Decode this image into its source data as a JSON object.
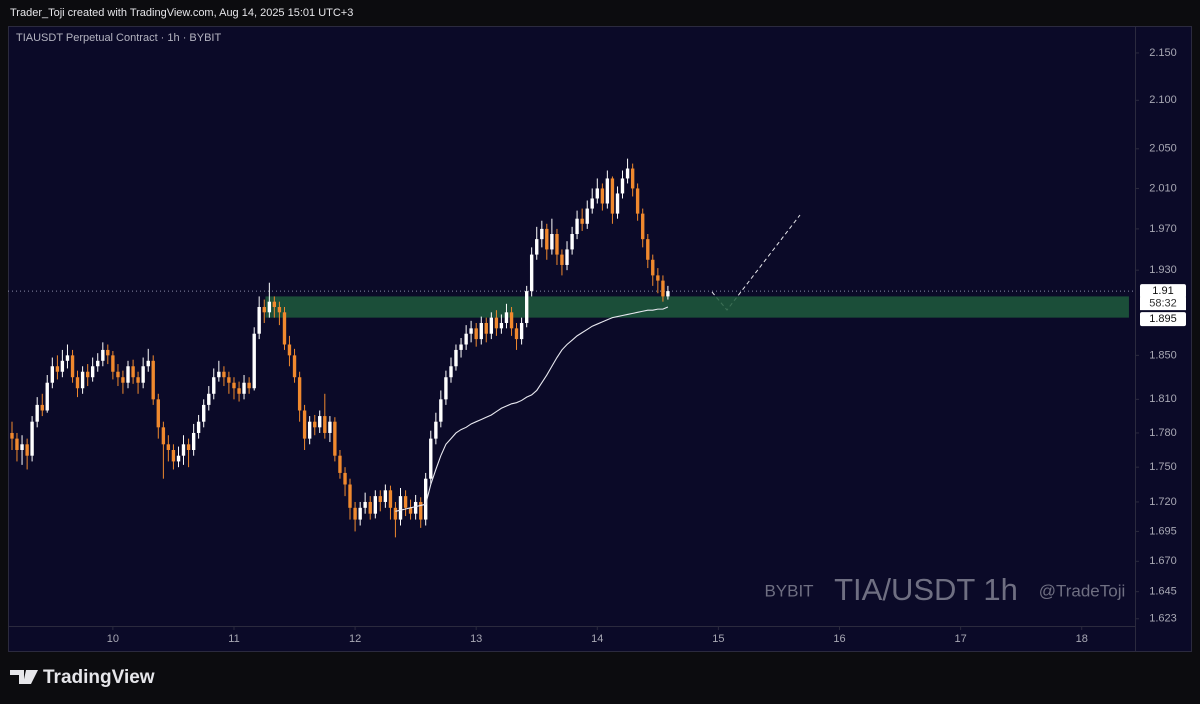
{
  "header": {
    "credit": "Trader_Toji created with TradingView.com, Aug 14, 2025 15:01 UTC+3"
  },
  "footer": {
    "brand": "TradingView"
  },
  "chart_data": {
    "type": "candlestick",
    "title": "TIAUSDT Perpetual Contract · 1h · BYBIT",
    "watermark": {
      "exchange": "BYBIT",
      "symbol": "TIA/USDT 1h",
      "author": "@TradeToji"
    },
    "log_scale": true,
    "up_color": "#ffffff",
    "down_color": "#f0892e",
    "x": [
      9.167,
      9.208,
      9.25,
      9.292,
      9.333,
      9.375,
      9.417,
      9.458,
      9.5,
      9.542,
      9.583,
      9.625,
      9.667,
      9.708,
      9.75,
      9.792,
      9.833,
      9.875,
      9.917,
      9.958,
      10.0,
      10.042,
      10.083,
      10.125,
      10.167,
      10.208,
      10.25,
      10.292,
      10.333,
      10.375,
      10.417,
      10.458,
      10.5,
      10.542,
      10.583,
      10.625,
      10.667,
      10.708,
      10.75,
      10.792,
      10.833,
      10.875,
      10.917,
      10.958,
      11.0,
      11.042,
      11.083,
      11.125,
      11.167,
      11.208,
      11.25,
      11.292,
      11.333,
      11.375,
      11.417,
      11.458,
      11.5,
      11.542,
      11.583,
      11.625,
      11.667,
      11.708,
      11.75,
      11.792,
      11.833,
      11.875,
      11.917,
      11.958,
      12.0,
      12.042,
      12.083,
      12.125,
      12.167,
      12.208,
      12.25,
      12.292,
      12.333,
      12.375,
      12.417,
      12.458,
      12.5,
      12.542,
      12.583,
      12.625,
      12.667,
      12.708,
      12.75,
      12.792,
      12.833,
      12.875,
      12.917,
      12.958,
      13.0,
      13.042,
      13.083,
      13.125,
      13.167,
      13.208,
      13.25,
      13.292,
      13.333,
      13.375,
      13.417,
      13.458,
      13.5,
      13.542,
      13.583,
      13.625,
      13.667,
      13.708,
      13.75,
      13.792,
      13.833,
      13.875,
      13.917,
      13.958,
      14.0,
      14.042,
      14.083,
      14.125,
      14.167,
      14.208,
      14.25,
      14.292,
      14.333,
      14.375,
      14.417,
      14.458,
      14.5,
      14.542,
      14.583
    ],
    "open": [
      1.78,
      1.775,
      1.765,
      1.77,
      1.76,
      1.79,
      1.805,
      1.8,
      1.825,
      1.84,
      1.835,
      1.845,
      1.85,
      1.83,
      1.82,
      1.835,
      1.83,
      1.84,
      1.845,
      1.855,
      1.85,
      1.835,
      1.83,
      1.825,
      1.84,
      1.83,
      1.825,
      1.84,
      1.845,
      1.81,
      1.785,
      1.77,
      1.765,
      1.755,
      1.76,
      1.77,
      1.765,
      1.78,
      1.79,
      1.805,
      1.815,
      1.83,
      1.835,
      1.83,
      1.825,
      1.82,
      1.815,
      1.825,
      1.82,
      1.87,
      1.895,
      1.89,
      1.9,
      1.895,
      1.89,
      1.86,
      1.85,
      1.83,
      1.8,
      1.775,
      1.79,
      1.785,
      1.795,
      1.78,
      1.79,
      1.76,
      1.745,
      1.735,
      1.715,
      1.705,
      1.715,
      1.72,
      1.71,
      1.725,
      1.72,
      1.73,
      1.715,
      1.705,
      1.725,
      1.715,
      1.71,
      1.72,
      1.705,
      1.74,
      1.775,
      1.79,
      1.81,
      1.83,
      1.84,
      1.855,
      1.86,
      1.87,
      1.875,
      1.865,
      1.88,
      1.87,
      1.885,
      1.875,
      1.88,
      1.89,
      1.875,
      1.865,
      1.88,
      1.91,
      1.945,
      1.96,
      1.97,
      1.95,
      1.965,
      1.945,
      1.935,
      1.95,
      1.965,
      1.98,
      1.975,
      1.99,
      2.0,
      2.01,
      1.995,
      2.02,
      1.985,
      2.005,
      2.02,
      2.03,
      2.01,
      1.985,
      1.96,
      1.94,
      1.925,
      1.92,
      1.905
    ],
    "high": [
      1.79,
      1.78,
      1.778,
      1.775,
      1.795,
      1.812,
      1.815,
      1.832,
      1.848,
      1.85,
      1.855,
      1.86,
      1.855,
      1.836,
      1.84,
      1.842,
      1.848,
      1.852,
      1.862,
      1.86,
      1.854,
      1.842,
      1.836,
      1.845,
      1.846,
      1.835,
      1.848,
      1.856,
      1.85,
      1.815,
      1.79,
      1.778,
      1.77,
      1.768,
      1.778,
      1.775,
      1.788,
      1.796,
      1.81,
      1.822,
      1.838,
      1.845,
      1.84,
      1.835,
      1.83,
      1.826,
      1.832,
      1.83,
      1.876,
      1.905,
      1.902,
      1.918,
      1.905,
      1.9,
      1.895,
      1.868,
      1.856,
      1.835,
      1.805,
      1.795,
      1.796,
      1.8,
      1.815,
      1.795,
      1.794,
      1.765,
      1.75,
      1.74,
      1.72,
      1.72,
      1.728,
      1.725,
      1.73,
      1.73,
      1.735,
      1.734,
      1.72,
      1.732,
      1.73,
      1.722,
      1.726,
      1.724,
      1.745,
      1.782,
      1.798,
      1.818,
      1.836,
      1.848,
      1.86,
      1.866,
      1.878,
      1.882,
      1.88,
      1.886,
      1.885,
      1.89,
      1.892,
      1.888,
      1.898,
      1.895,
      1.88,
      1.885,
      1.915,
      1.952,
      1.972,
      1.978,
      1.975,
      1.98,
      1.97,
      1.95,
      1.958,
      1.972,
      1.988,
      1.99,
      1.998,
      2.01,
      2.02,
      2.015,
      2.028,
      2.022,
      2.012,
      2.028,
      2.04,
      2.035,
      2.015,
      1.99,
      1.965,
      1.945,
      1.932,
      1.925,
      1.915
    ],
    "low": [
      1.765,
      1.755,
      1.752,
      1.748,
      1.755,
      1.785,
      1.795,
      1.798,
      1.82,
      1.828,
      1.83,
      1.838,
      1.825,
      1.812,
      1.815,
      1.822,
      1.826,
      1.835,
      1.84,
      1.842,
      1.828,
      1.822,
      1.815,
      1.82,
      1.824,
      1.815,
      1.82,
      1.835,
      1.805,
      1.775,
      1.74,
      1.755,
      1.748,
      1.75,
      1.752,
      1.75,
      1.76,
      1.775,
      1.785,
      1.8,
      1.81,
      1.826,
      1.822,
      1.815,
      1.81,
      1.808,
      1.81,
      1.815,
      1.818,
      1.865,
      1.88,
      1.885,
      1.885,
      1.878,
      1.855,
      1.84,
      1.825,
      1.79,
      1.765,
      1.77,
      1.778,
      1.78,
      1.775,
      1.772,
      1.755,
      1.74,
      1.725,
      1.705,
      1.695,
      1.7,
      1.71,
      1.705,
      1.706,
      1.712,
      1.715,
      1.705,
      1.69,
      1.7,
      1.708,
      1.705,
      1.705,
      1.698,
      1.7,
      1.735,
      1.77,
      1.785,
      1.805,
      1.825,
      1.836,
      1.848,
      1.855,
      1.862,
      1.858,
      1.86,
      1.862,
      1.865,
      1.868,
      1.87,
      1.875,
      1.868,
      1.855,
      1.86,
      1.876,
      1.905,
      1.94,
      1.952,
      1.94,
      1.945,
      1.935,
      1.925,
      1.93,
      1.945,
      1.96,
      1.968,
      1.97,
      1.985,
      1.995,
      1.988,
      1.99,
      1.975,
      1.98,
      2.0,
      2.015,
      2.002,
      1.978,
      1.952,
      1.932,
      1.915,
      1.908,
      1.9,
      1.902
    ],
    "close": [
      1.775,
      1.765,
      1.77,
      1.76,
      1.79,
      1.805,
      1.8,
      1.825,
      1.84,
      1.835,
      1.845,
      1.85,
      1.83,
      1.82,
      1.835,
      1.83,
      1.84,
      1.845,
      1.855,
      1.85,
      1.835,
      1.83,
      1.825,
      1.84,
      1.83,
      1.825,
      1.84,
      1.845,
      1.81,
      1.785,
      1.77,
      1.765,
      1.755,
      1.76,
      1.77,
      1.765,
      1.78,
      1.79,
      1.805,
      1.815,
      1.83,
      1.835,
      1.83,
      1.825,
      1.82,
      1.815,
      1.825,
      1.82,
      1.87,
      1.895,
      1.89,
      1.9,
      1.895,
      1.89,
      1.86,
      1.85,
      1.83,
      1.8,
      1.775,
      1.79,
      1.785,
      1.795,
      1.78,
      1.79,
      1.76,
      1.745,
      1.735,
      1.715,
      1.705,
      1.715,
      1.72,
      1.71,
      1.725,
      1.72,
      1.73,
      1.715,
      1.705,
      1.725,
      1.715,
      1.71,
      1.72,
      1.705,
      1.74,
      1.775,
      1.79,
      1.81,
      1.83,
      1.84,
      1.855,
      1.86,
      1.87,
      1.875,
      1.865,
      1.88,
      1.87,
      1.885,
      1.875,
      1.88,
      1.89,
      1.875,
      1.865,
      1.88,
      1.91,
      1.945,
      1.96,
      1.97,
      1.95,
      1.965,
      1.945,
      1.935,
      1.95,
      1.965,
      1.98,
      1.975,
      1.99,
      2.0,
      2.01,
      1.995,
      2.02,
      1.985,
      2.005,
      2.02,
      2.03,
      2.01,
      1.985,
      1.96,
      1.94,
      1.925,
      1.92,
      1.905,
      1.91
    ],
    "ma": {
      "color": "#e8e8f0",
      "values": [
        null,
        null,
        null,
        null,
        null,
        null,
        null,
        null,
        null,
        null,
        null,
        null,
        null,
        null,
        null,
        null,
        null,
        null,
        null,
        null,
        null,
        null,
        null,
        null,
        null,
        null,
        null,
        null,
        null,
        null,
        null,
        null,
        null,
        null,
        null,
        null,
        null,
        null,
        null,
        null,
        null,
        null,
        null,
        null,
        null,
        null,
        null,
        null,
        null,
        null,
        null,
        null,
        null,
        null,
        null,
        null,
        null,
        null,
        null,
        null,
        null,
        null,
        null,
        null,
        null,
        null,
        null,
        null,
        null,
        null,
        null,
        null,
        null,
        null,
        null,
        null,
        1.712,
        1.713,
        1.714,
        1.715,
        1.716,
        1.717,
        1.718,
        1.735,
        1.748,
        1.76,
        1.77,
        1.775,
        1.78,
        1.783,
        1.785,
        1.788,
        1.79,
        1.792,
        1.794,
        1.796,
        1.799,
        1.802,
        1.804,
        1.806,
        1.807,
        1.809,
        1.812,
        1.814,
        1.818,
        1.825,
        1.832,
        1.84,
        1.848,
        1.855,
        1.86,
        1.864,
        1.868,
        1.871,
        1.874,
        1.877,
        1.879,
        1.881,
        1.883,
        1.885,
        1.886,
        1.887,
        1.888,
        1.889,
        1.89,
        1.891,
        1.892,
        1.892,
        1.893,
        1.893,
        1.895
      ]
    },
    "countdown": "58:32",
    "zone": {
      "x": [
        11.26,
        18.39
      ],
      "y": [
        1.885,
        1.905
      ],
      "color": "#1f5a3c"
    },
    "xlim": [
      9.134,
      18.44
    ],
    "xticks": [
      10,
      11,
      12,
      13,
      14,
      15,
      16,
      17,
      18
    ],
    "ylim": [
      1.598,
      2.179
    ],
    "yticks": [
      {
        "value": 2.15,
        "label": "2.150"
      },
      {
        "value": 2.1,
        "label": "2.100"
      },
      {
        "value": 2.05,
        "label": "2.050"
      },
      {
        "value": 2.01,
        "label": "2.010"
      },
      {
        "value": 1.97,
        "label": "1.970"
      },
      {
        "value": 1.93,
        "label": "1.930"
      },
      {
        "value": 1.85,
        "label": "1.850"
      },
      {
        "value": 1.81,
        "label": "1.810"
      },
      {
        "value": 1.78,
        "label": "1.780"
      },
      {
        "value": 1.75,
        "label": "1.750"
      },
      {
        "value": 1.72,
        "label": "1.720"
      },
      {
        "value": 1.695,
        "label": "1.695"
      },
      {
        "value": 1.67,
        "label": "1.670"
      },
      {
        "value": 1.645,
        "label": "1.645"
      },
      {
        "value": 1.623,
        "label": "1.623"
      }
    ],
    "grid": false
  }
}
